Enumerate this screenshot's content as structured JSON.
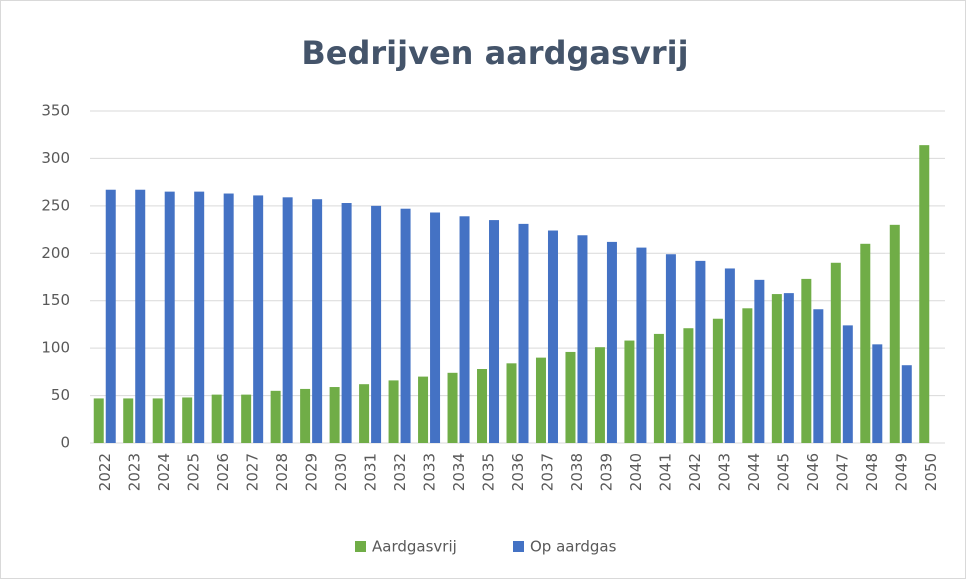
{
  "chart_data": {
    "type": "bar",
    "title": "Bedrijven aardgasvrij",
    "categories": [
      "2022",
      "2023",
      "2024",
      "2025",
      "2026",
      "2027",
      "2028",
      "2029",
      "2030",
      "2031",
      "2032",
      "2033",
      "2034",
      "2035",
      "2036",
      "2037",
      "2038",
      "2039",
      "2040",
      "2041",
      "2042",
      "2043",
      "2044",
      "2045",
      "2046",
      "2047",
      "2048",
      "2049",
      "2050"
    ],
    "series": [
      {
        "name": "Aardgasvrij",
        "color": "#70ad47",
        "values": [
          47,
          47,
          47,
          48,
          51,
          51,
          55,
          57,
          59,
          62,
          66,
          70,
          74,
          78,
          84,
          90,
          96,
          101,
          108,
          115,
          121,
          131,
          142,
          157,
          173,
          190,
          210,
          230,
          314
        ]
      },
      {
        "name": "Op aardgas",
        "color": "#4472c4",
        "values": [
          267,
          267,
          265,
          265,
          263,
          261,
          259,
          257,
          253,
          250,
          247,
          243,
          239,
          235,
          231,
          224,
          219,
          212,
          206,
          199,
          192,
          184,
          172,
          158,
          141,
          124,
          104,
          82,
          null
        ]
      }
    ],
    "ylim": [
      0,
      350
    ],
    "yticks": [
      0,
      50,
      100,
      150,
      200,
      250,
      300,
      350
    ],
    "grid": true,
    "legend": "bottom"
  }
}
